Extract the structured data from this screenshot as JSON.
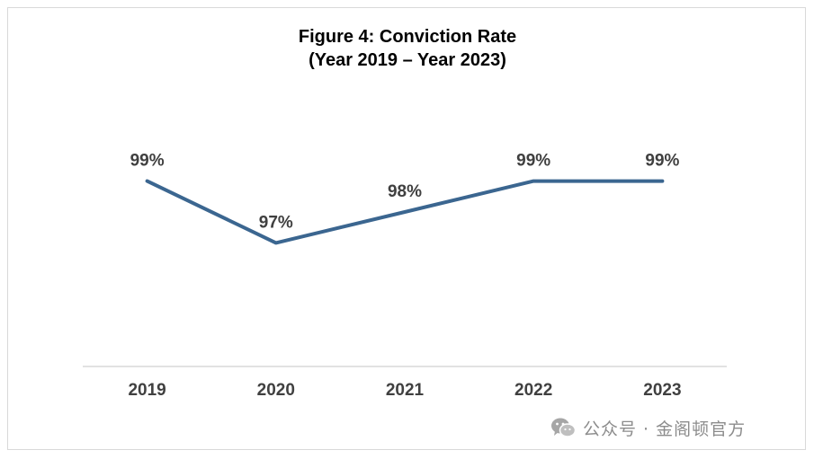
{
  "chart_data": {
    "type": "line",
    "title": "Figure 4: Conviction Rate",
    "subtitle": "(Year 2019 – Year 2023)",
    "categories": [
      "2019",
      "2020",
      "2021",
      "2022",
      "2023"
    ],
    "series": [
      {
        "values": [
          99,
          97,
          98,
          99,
          99
        ],
        "labels": [
          "99%",
          "97%",
          "98%",
          "99%",
          "99%"
        ]
      }
    ],
    "xlabel": "",
    "ylabel": "",
    "ylim": [
      93,
      100.5
    ],
    "grid": false,
    "legend": "none",
    "colors": {
      "line": "#3b6690",
      "axis": "#d9d9d9",
      "text": "#404040"
    }
  },
  "watermark": {
    "icon": "wechat-icon",
    "text": "公众号 · 金阁顿官方"
  }
}
